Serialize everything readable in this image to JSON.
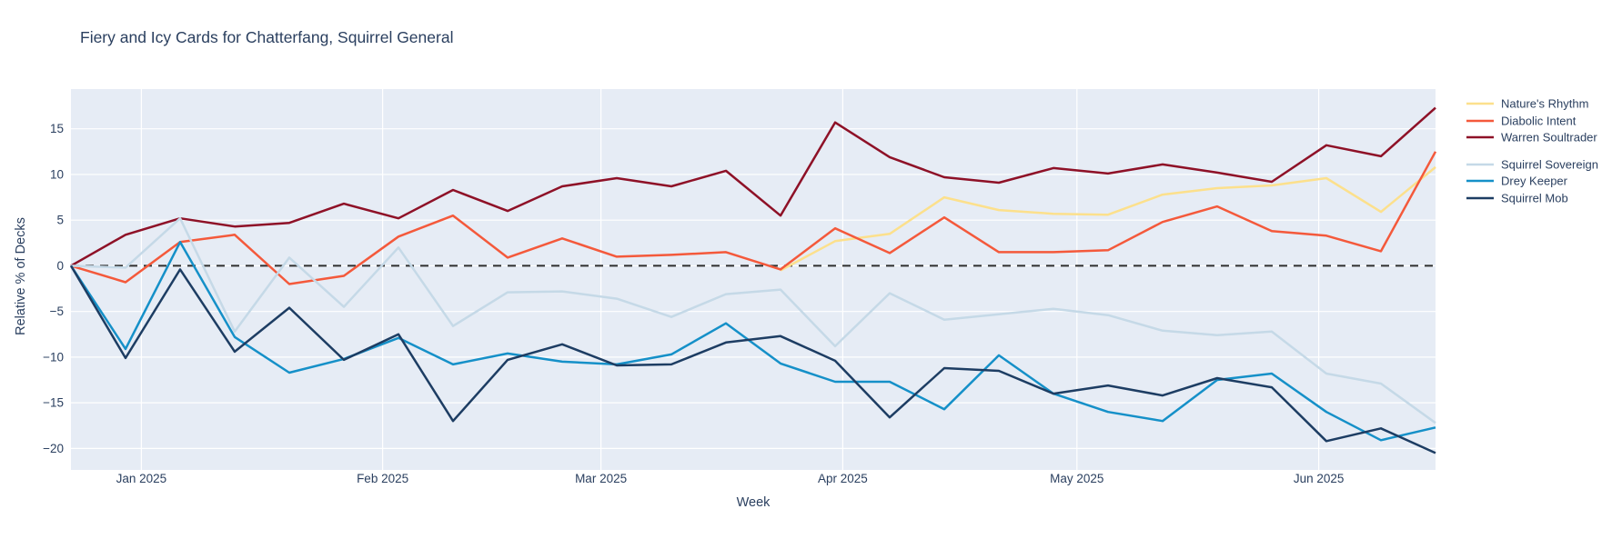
{
  "chart_data": {
    "type": "line",
    "title": "Fiery and Icy Cards for Chatterfang, Squirrel General",
    "xlabel": "Week",
    "ylabel": "Relative % of Decks",
    "grid": true,
    "legend_position": "right",
    "zero_line_dashed": true,
    "n_points": 26,
    "x_unit": "weekly points from late Dec 2024 to mid Jun 2025",
    "x_ticks": [
      {
        "label": "Jan 2025",
        "pos": 1.29
      },
      {
        "label": "Feb 2025",
        "pos": 5.71
      },
      {
        "label": "Mar 2025",
        "pos": 9.71
      },
      {
        "label": "Apr 2025",
        "pos": 14.14
      },
      {
        "label": "May 2025",
        "pos": 18.43
      },
      {
        "label": "Jun 2025",
        "pos": 22.86
      }
    ],
    "y_ticks": [
      15,
      10,
      5,
      0,
      -5,
      -10,
      -15,
      -20
    ],
    "ylim": [
      -22.35,
      19.35
    ],
    "colors": {
      "plot_background": "#e6ecf5",
      "paper_background": "#ffffff",
      "grid": "#ffffff",
      "text": "#2a3f5f",
      "zero_line": "#2f2f2f"
    },
    "series": [
      {
        "name": "Nature's Rhythm",
        "group": "fiery",
        "color": "#fce08c",
        "values": [
          null,
          null,
          null,
          null,
          null,
          null,
          null,
          null,
          null,
          null,
          null,
          null,
          null,
          -0.5,
          2.7,
          3.5,
          7.5,
          6.1,
          5.7,
          5.6,
          7.8,
          8.5,
          8.8,
          9.6,
          5.9,
          10.8
        ]
      },
      {
        "name": "Diabolic Intent",
        "group": "fiery",
        "color": "#f4593b",
        "values": [
          0,
          -1.8,
          2.6,
          3.4,
          -2.0,
          -1.1,
          3.2,
          5.5,
          0.9,
          3.0,
          1.0,
          1.2,
          1.5,
          -0.4,
          4.1,
          1.4,
          5.3,
          1.5,
          1.5,
          1.7,
          4.8,
          6.5,
          3.8,
          3.3,
          1.6,
          12.5
        ]
      },
      {
        "name": "Warren Soultrader",
        "group": "fiery",
        "color": "#8e1127",
        "values": [
          0,
          3.4,
          5.2,
          4.3,
          4.7,
          6.8,
          5.2,
          8.3,
          6.0,
          8.7,
          9.6,
          8.7,
          10.4,
          5.5,
          15.7,
          11.9,
          9.7,
          9.1,
          10.7,
          10.1,
          11.1,
          10.2,
          9.2,
          13.2,
          12.0,
          17.3
        ]
      },
      {
        "name": "Squirrel Sovereign",
        "group": "icy",
        "color": "#c5d9e7",
        "values": [
          0,
          -0.2,
          5.2,
          -7.2,
          0.9,
          -4.5,
          2.0,
          -6.6,
          -2.9,
          -2.8,
          -3.6,
          -5.6,
          -3.1,
          -2.6,
          -8.8,
          -3.0,
          -5.9,
          -5.3,
          -4.7,
          -5.4,
          -7.1,
          -7.6,
          -7.2,
          -11.8,
          -12.9,
          -17.2
        ]
      },
      {
        "name": "Drey Keeper",
        "group": "icy",
        "color": "#1590c8",
        "values": [
          0,
          -9.1,
          2.6,
          -7.8,
          -11.7,
          -10.2,
          -7.9,
          -10.8,
          -9.6,
          -10.5,
          -10.8,
          -9.7,
          -6.3,
          -10.7,
          -12.7,
          -12.7,
          -15.7,
          -9.8,
          -14.0,
          -16.0,
          -17.0,
          -12.5,
          -11.8,
          -16.0,
          -19.1,
          -17.7
        ]
      },
      {
        "name": "Squirrel Mob",
        "group": "icy",
        "color": "#1d3d63",
        "values": [
          0,
          -10.1,
          -0.4,
          -9.4,
          -4.6,
          -10.3,
          -7.5,
          -17.0,
          -10.3,
          -8.6,
          -10.9,
          -10.8,
          -8.4,
          -7.7,
          -10.4,
          -16.6,
          -11.2,
          -11.5,
          -14.0,
          -13.1,
          -14.2,
          -12.3,
          -13.3,
          -19.2,
          -17.8,
          -20.5
        ]
      }
    ]
  }
}
